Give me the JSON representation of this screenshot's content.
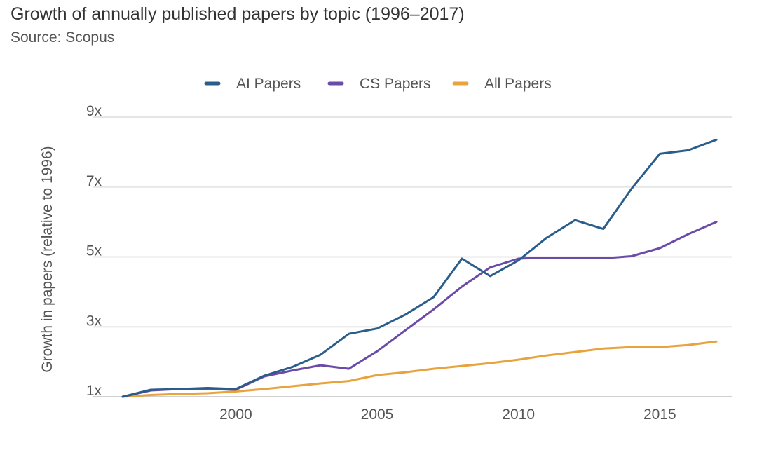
{
  "title": "Growth of annually published papers by topic (1996–2017)",
  "subtitle": "Source: Scopus",
  "chart_data": {
    "type": "line",
    "title": "Growth of annually published papers by topic (1996–2017)",
    "subtitle": "Source: Scopus",
    "xlabel": "",
    "ylabel": "Growth in papers (relative to 1996)",
    "x": [
      1996,
      1997,
      1998,
      1999,
      2000,
      2001,
      2002,
      2003,
      2004,
      2005,
      2006,
      2007,
      2008,
      2009,
      2010,
      2011,
      2012,
      2013,
      2014,
      2015,
      2016,
      2017
    ],
    "xticks": [
      2000,
      2005,
      2010,
      2015
    ],
    "xlim": [
      1996,
      2017
    ],
    "yticks": [
      1,
      3,
      5,
      7,
      9
    ],
    "ytick_labels": [
      "1x",
      "3x",
      "5x",
      "7x",
      "9x"
    ],
    "ylim": [
      0.95,
      9
    ],
    "grid": true,
    "legend_position": "top-center",
    "series": [
      {
        "name": "AI Papers",
        "color": "#2b5d8a",
        "values": [
          1.0,
          1.2,
          1.22,
          1.25,
          1.22,
          1.6,
          1.85,
          2.2,
          2.8,
          2.95,
          3.35,
          3.85,
          4.95,
          4.45,
          4.9,
          5.55,
          6.05,
          5.8,
          6.95,
          7.95,
          8.05,
          8.35
        ]
      },
      {
        "name": "CS Papers",
        "color": "#6b4ba8",
        "values": [
          1.0,
          1.18,
          1.22,
          1.22,
          1.2,
          1.58,
          1.75,
          1.9,
          1.8,
          2.3,
          2.9,
          3.5,
          4.15,
          4.7,
          4.95,
          4.98,
          4.98,
          4.96,
          5.02,
          5.25,
          5.65,
          6.0
        ]
      },
      {
        "name": "All Papers",
        "color": "#e8a33d",
        "values": [
          1.0,
          1.05,
          1.08,
          1.1,
          1.15,
          1.22,
          1.3,
          1.38,
          1.45,
          1.62,
          1.7,
          1.8,
          1.88,
          1.96,
          2.06,
          2.18,
          2.28,
          2.38,
          2.42,
          2.42,
          2.48,
          2.58
        ]
      }
    ]
  }
}
